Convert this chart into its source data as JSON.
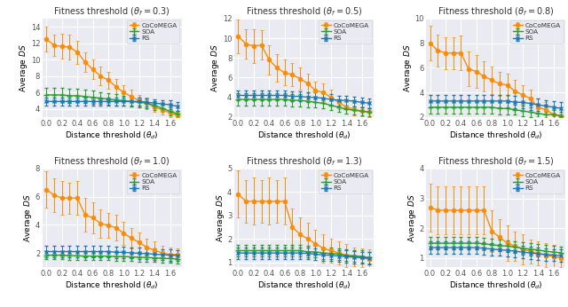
{
  "x": [
    0.0,
    0.1,
    0.2,
    0.3,
    0.4,
    0.5,
    0.6,
    0.7,
    0.8,
    0.9,
    1.0,
    1.1,
    1.2,
    1.3,
    1.4,
    1.5,
    1.6,
    1.7
  ],
  "subplots": [
    {
      "title": "Fitness threshold ($\\theta_f = 0.3$)",
      "ylim": [
        3,
        15
      ],
      "yticks": [
        4,
        6,
        8,
        10,
        12,
        14
      ],
      "cocomeGA_y": [
        12.5,
        11.7,
        11.6,
        11.5,
        10.9,
        9.7,
        8.8,
        8.0,
        7.5,
        6.7,
        6.0,
        5.5,
        5.0,
        4.7,
        4.2,
        3.9,
        3.5,
        3.2
      ],
      "cocomeGA_err": [
        1.5,
        1.3,
        1.5,
        1.5,
        1.4,
        1.2,
        1.2,
        1.1,
        1.0,
        0.9,
        0.9,
        0.8,
        0.7,
        0.7,
        0.6,
        0.6,
        0.5,
        0.4
      ],
      "soa_y": [
        5.7,
        5.7,
        5.7,
        5.6,
        5.6,
        5.5,
        5.4,
        5.3,
        5.2,
        5.1,
        5.0,
        4.9,
        4.8,
        4.7,
        4.4,
        4.1,
        3.7,
        3.4
      ],
      "soa_err": [
        0.9,
        0.9,
        0.9,
        0.9,
        0.8,
        0.8,
        0.8,
        0.7,
        0.7,
        0.7,
        0.6,
        0.6,
        0.6,
        0.6,
        0.5,
        0.5,
        0.5,
        0.4
      ],
      "rs_y": [
        4.9,
        4.9,
        4.9,
        4.9,
        4.9,
        4.9,
        4.9,
        4.9,
        4.9,
        4.9,
        4.9,
        4.9,
        4.9,
        4.8,
        4.7,
        4.6,
        4.5,
        4.3
      ],
      "rs_err": [
        0.5,
        0.5,
        0.5,
        0.5,
        0.5,
        0.5,
        0.5,
        0.5,
        0.5,
        0.5,
        0.5,
        0.5,
        0.5,
        0.5,
        0.5,
        0.5,
        0.5,
        0.5
      ]
    },
    {
      "title": "Fitness threshold ($\\theta_f = 0.5$)",
      "ylim": [
        2,
        12
      ],
      "yticks": [
        2,
        4,
        6,
        8,
        10,
        12
      ],
      "cocomeGA_y": [
        10.2,
        9.4,
        9.2,
        9.3,
        7.8,
        7.0,
        6.5,
        6.3,
        5.9,
        5.4,
        4.7,
        4.5,
        4.0,
        3.5,
        3.0,
        2.8,
        2.6,
        2.5
      ],
      "cocomeGA_err": [
        1.7,
        1.5,
        1.7,
        1.5,
        1.5,
        1.4,
        1.3,
        1.2,
        1.1,
        1.0,
        0.9,
        0.9,
        0.8,
        0.7,
        0.6,
        0.6,
        0.5,
        0.5
      ],
      "soa_y": [
        3.8,
        3.8,
        3.8,
        3.8,
        3.8,
        3.8,
        3.8,
        3.7,
        3.7,
        3.6,
        3.5,
        3.4,
        3.2,
        3.0,
        2.8,
        2.7,
        2.6,
        2.5
      ],
      "soa_err": [
        0.6,
        0.6,
        0.6,
        0.6,
        0.6,
        0.6,
        0.6,
        0.6,
        0.6,
        0.6,
        0.5,
        0.5,
        0.5,
        0.5,
        0.4,
        0.4,
        0.4,
        0.4
      ],
      "rs_y": [
        4.2,
        4.2,
        4.2,
        4.2,
        4.2,
        4.2,
        4.2,
        4.1,
        4.1,
        4.0,
        4.0,
        3.9,
        3.8,
        3.7,
        3.7,
        3.6,
        3.5,
        3.4
      ],
      "rs_err": [
        0.5,
        0.5,
        0.5,
        0.5,
        0.5,
        0.5,
        0.5,
        0.5,
        0.5,
        0.5,
        0.5,
        0.5,
        0.5,
        0.5,
        0.5,
        0.5,
        0.5,
        0.5
      ]
    },
    {
      "title": "Fitness threshold ($\\theta_f = 0.8$)",
      "ylim": [
        2,
        10
      ],
      "yticks": [
        2,
        4,
        6,
        8,
        10
      ],
      "cocomeGA_y": [
        8.0,
        7.4,
        7.2,
        7.2,
        7.2,
        5.9,
        5.7,
        5.3,
        5.0,
        4.7,
        4.6,
        4.1,
        3.8,
        3.5,
        2.8,
        2.6,
        2.2,
        2.1
      ],
      "cocomeGA_err": [
        1.4,
        1.3,
        1.3,
        1.3,
        1.4,
        1.4,
        1.3,
        1.2,
        1.1,
        1.0,
        0.9,
        0.9,
        0.8,
        0.7,
        0.7,
        0.6,
        0.6,
        0.5
      ],
      "soa_y": [
        2.8,
        2.8,
        2.8,
        2.8,
        2.8,
        2.8,
        2.8,
        2.8,
        2.8,
        2.7,
        2.7,
        2.6,
        2.5,
        2.4,
        2.3,
        2.2,
        2.2,
        2.1
      ],
      "soa_err": [
        0.5,
        0.5,
        0.5,
        0.5,
        0.5,
        0.5,
        0.5,
        0.5,
        0.5,
        0.5,
        0.5,
        0.4,
        0.4,
        0.4,
        0.4,
        0.4,
        0.4,
        0.3
      ],
      "rs_y": [
        3.3,
        3.3,
        3.3,
        3.3,
        3.3,
        3.3,
        3.3,
        3.3,
        3.3,
        3.3,
        3.3,
        3.2,
        3.2,
        3.1,
        3.0,
        2.9,
        2.8,
        2.7
      ],
      "rs_err": [
        0.5,
        0.5,
        0.5,
        0.5,
        0.5,
        0.5,
        0.5,
        0.5,
        0.5,
        0.5,
        0.5,
        0.5,
        0.5,
        0.5,
        0.5,
        0.5,
        0.5,
        0.5
      ]
    },
    {
      "title": "Fitness threshold ($\\theta_f = 1.0$)",
      "ylim": [
        1,
        8
      ],
      "yticks": [
        2,
        4,
        6,
        8
      ],
      "cocomeGA_y": [
        6.5,
        6.1,
        5.9,
        5.9,
        5.9,
        4.7,
        4.5,
        4.1,
        3.95,
        3.8,
        3.4,
        3.05,
        2.75,
        2.4,
        2.2,
        2.0,
        1.9,
        1.9
      ],
      "cocomeGA_err": [
        1.3,
        1.2,
        1.2,
        1.1,
        1.2,
        1.2,
        1.1,
        1.0,
        0.9,
        0.9,
        0.8,
        0.7,
        0.7,
        0.6,
        0.6,
        0.5,
        0.5,
        0.4
      ],
      "soa_y": [
        1.85,
        1.85,
        1.85,
        1.82,
        1.8,
        1.78,
        1.78,
        1.78,
        1.78,
        1.75,
        1.75,
        1.72,
        1.7,
        1.68,
        1.65,
        1.63,
        1.6,
        1.58
      ],
      "soa_err": [
        0.3,
        0.3,
        0.3,
        0.3,
        0.3,
        0.3,
        0.3,
        0.3,
        0.3,
        0.3,
        0.3,
        0.3,
        0.3,
        0.3,
        0.3,
        0.3,
        0.3,
        0.3
      ],
      "rs_y": [
        2.1,
        2.1,
        2.1,
        2.1,
        2.1,
        2.1,
        2.1,
        2.1,
        2.1,
        2.05,
        2.05,
        2.0,
        1.98,
        1.95,
        1.92,
        1.88,
        1.85,
        1.82
      ],
      "rs_err": [
        0.4,
        0.4,
        0.4,
        0.4,
        0.4,
        0.4,
        0.4,
        0.4,
        0.4,
        0.4,
        0.4,
        0.4,
        0.4,
        0.4,
        0.4,
        0.4,
        0.4,
        0.4
      ]
    },
    {
      "title": "Fitness threshold ($\\theta_f = 1.3$)",
      "ylim": [
        0.8,
        5
      ],
      "yticks": [
        1,
        2,
        3,
        4,
        5
      ],
      "cocomeGA_y": [
        3.9,
        3.6,
        3.6,
        3.6,
        3.6,
        3.6,
        3.6,
        2.5,
        2.2,
        2.0,
        1.8,
        1.6,
        1.5,
        1.4,
        1.3,
        1.25,
        1.2,
        1.15
      ],
      "cocomeGA_err": [
        1.0,
        0.9,
        1.0,
        0.9,
        1.0,
        0.9,
        1.0,
        0.8,
        0.7,
        0.7,
        0.6,
        0.6,
        0.5,
        0.5,
        0.5,
        0.4,
        0.4,
        0.4
      ],
      "soa_y": [
        1.5,
        1.5,
        1.5,
        1.5,
        1.5,
        1.5,
        1.5,
        1.5,
        1.5,
        1.45,
        1.45,
        1.4,
        1.38,
        1.35,
        1.3,
        1.28,
        1.25,
        1.2
      ],
      "soa_err": [
        0.25,
        0.25,
        0.25,
        0.25,
        0.25,
        0.25,
        0.25,
        0.25,
        0.25,
        0.25,
        0.25,
        0.25,
        0.25,
        0.25,
        0.25,
        0.25,
        0.25,
        0.25
      ],
      "rs_y": [
        1.4,
        1.4,
        1.4,
        1.4,
        1.4,
        1.4,
        1.4,
        1.4,
        1.4,
        1.38,
        1.35,
        1.32,
        1.3,
        1.27,
        1.25,
        1.22,
        1.2,
        1.18
      ],
      "rs_err": [
        0.25,
        0.25,
        0.25,
        0.25,
        0.25,
        0.25,
        0.25,
        0.25,
        0.25,
        0.25,
        0.25,
        0.25,
        0.25,
        0.25,
        0.25,
        0.25,
        0.25,
        0.25
      ]
    },
    {
      "title": "Fitness threshold ($\\theta_f = 1.5$)",
      "ylim": [
        0.7,
        4
      ],
      "yticks": [
        1,
        2,
        3,
        4
      ],
      "cocomeGA_y": [
        2.7,
        2.6,
        2.6,
        2.6,
        2.6,
        2.6,
        2.6,
        2.6,
        1.9,
        1.7,
        1.5,
        1.4,
        1.3,
        1.22,
        1.15,
        1.1,
        1.05,
        1.0
      ],
      "cocomeGA_err": [
        0.8,
        0.8,
        0.8,
        0.8,
        0.8,
        0.8,
        0.8,
        0.8,
        0.7,
        0.6,
        0.6,
        0.5,
        0.5,
        0.4,
        0.4,
        0.4,
        0.4,
        0.3
      ],
      "soa_y": [
        1.5,
        1.5,
        1.5,
        1.5,
        1.5,
        1.5,
        1.5,
        1.48,
        1.45,
        1.42,
        1.4,
        1.37,
        1.33,
        1.3,
        1.27,
        1.23,
        1.2,
        1.18
      ],
      "soa_err": [
        0.2,
        0.2,
        0.2,
        0.2,
        0.2,
        0.2,
        0.2,
        0.2,
        0.2,
        0.2,
        0.2,
        0.2,
        0.2,
        0.2,
        0.2,
        0.2,
        0.2,
        0.2
      ],
      "rs_y": [
        1.35,
        1.35,
        1.35,
        1.35,
        1.35,
        1.35,
        1.35,
        1.33,
        1.3,
        1.28,
        1.26,
        1.23,
        1.2,
        1.17,
        1.15,
        1.12,
        1.1,
        1.08
      ],
      "rs_err": [
        0.2,
        0.2,
        0.2,
        0.2,
        0.2,
        0.2,
        0.2,
        0.2,
        0.2,
        0.2,
        0.2,
        0.2,
        0.2,
        0.2,
        0.2,
        0.2,
        0.2,
        0.2
      ]
    }
  ],
  "color_cocomeGA": "#ff8c00",
  "color_soa": "#2ca02c",
  "color_rs": "#1f77b4",
  "xlabel": "Distance threshold ($\\theta_d$)",
  "ylabel": "Average $DS$",
  "legend_labels": [
    "CoCoMEGA",
    "SOA",
    "RS"
  ],
  "xticks": [
    0.0,
    0.2,
    0.4,
    0.6,
    0.8,
    1.0,
    1.2,
    1.4,
    1.6
  ],
  "marker_size": 3.5,
  "linewidth": 1.0,
  "capsize": 1.5,
  "elinewidth": 0.7
}
